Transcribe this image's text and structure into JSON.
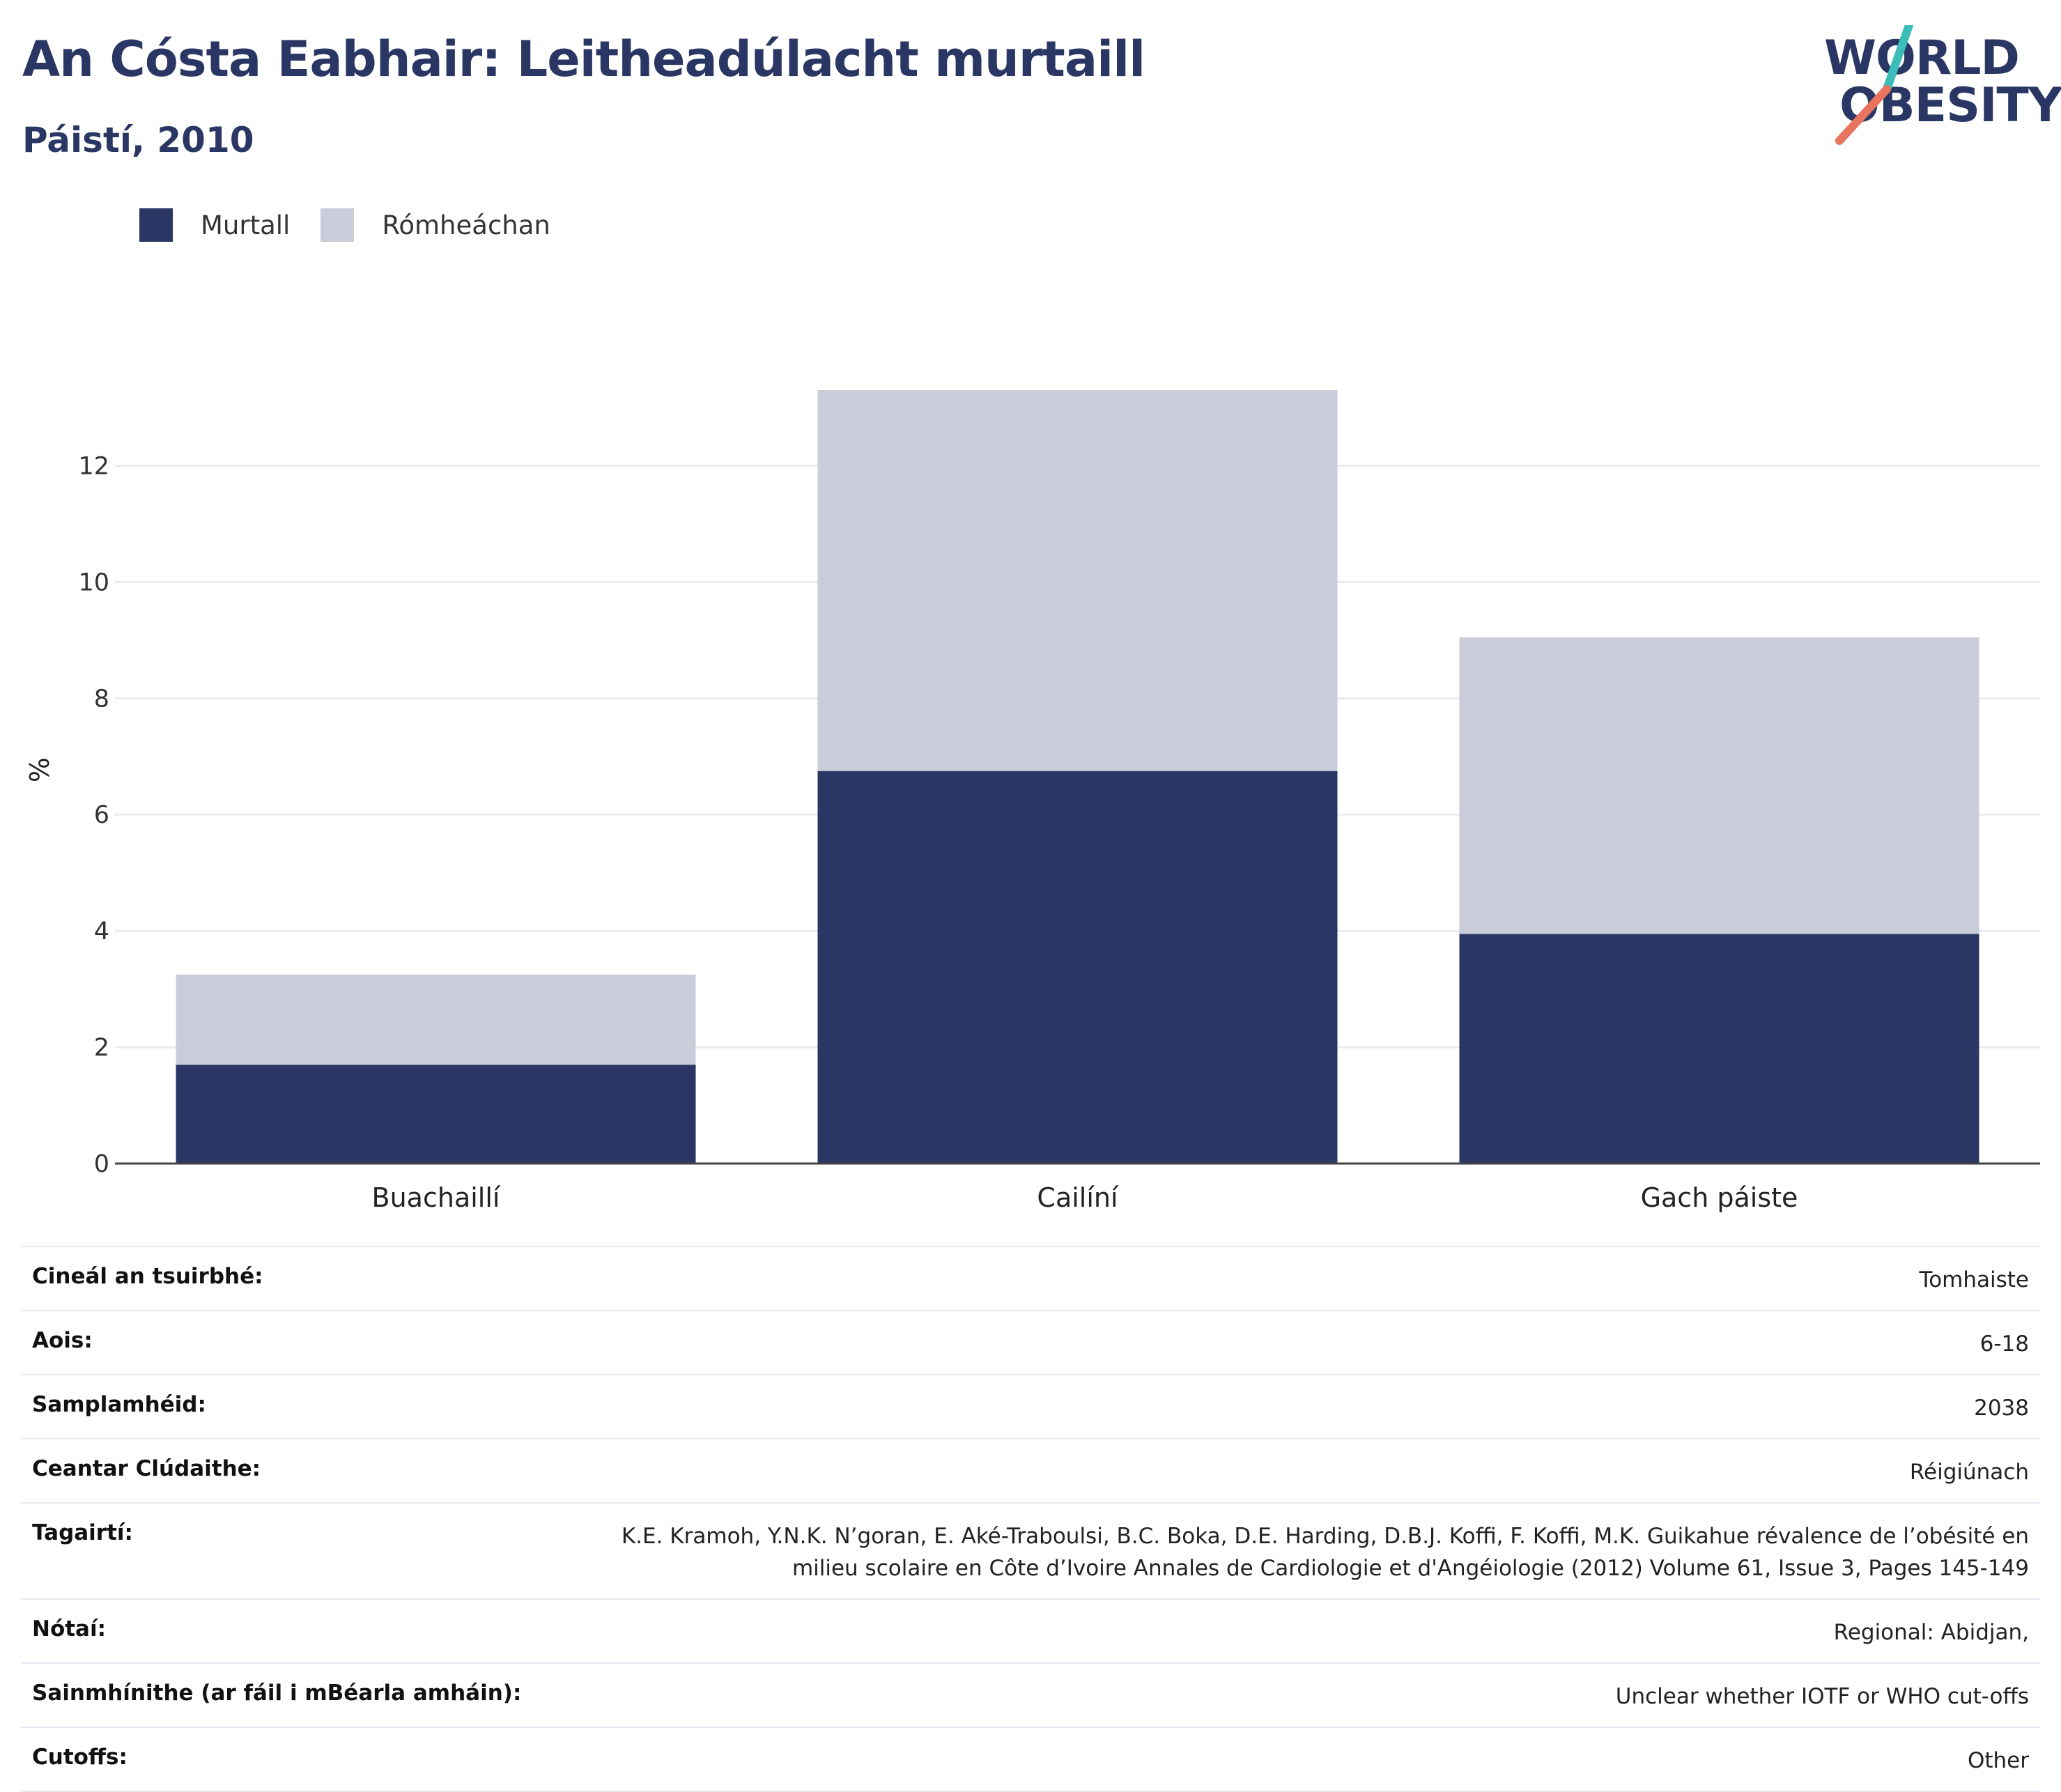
{
  "header": {
    "title": "An Cósta Eabhair: Leitheadúlacht murtaill",
    "subtitle": "Páistí, 2010",
    "logo_line1": "WORLD",
    "logo_line2": "OBESITY"
  },
  "colors": {
    "obese": "#2a3663",
    "overweight": "#cacdd9",
    "title": "#2a3663",
    "logo_teal": "#3dbdb9",
    "logo_coral": "#e8735f",
    "grid": "#e9ebf0",
    "axis": "#444444"
  },
  "chart_data": {
    "type": "bar",
    "stacked": true,
    "categories": [
      "Buachaillí",
      "Cailíní",
      "Gach páiste"
    ],
    "series": [
      {
        "name": "Murtall",
        "values": [
          1.7,
          6.75,
          3.95
        ]
      },
      {
        "name": "Rómheáchan",
        "values": [
          1.55,
          6.55,
          5.1
        ]
      }
    ],
    "ylabel": "%",
    "ylim": [
      0,
      13.3
    ],
    "yticks": [
      0,
      2,
      4,
      6,
      8,
      10,
      12
    ],
    "grid": true,
    "legend_position": "top-left"
  },
  "info_table": [
    {
      "key": "Cineál an tsuirbhé:",
      "value": "Tomhaiste"
    },
    {
      "key": "Aois:",
      "value": "6-18"
    },
    {
      "key": "Samplamhéid:",
      "value": "2038"
    },
    {
      "key": "Ceantar Clúdaithe:",
      "value": "Réigiúnach"
    },
    {
      "key": "Tagairtí:",
      "value": "K.E. Kramoh, Y.N.K. N’goran, E. Aké-Traboulsi, B.C. Boka, D.E. Harding, D.B.J. Koffi, F. Koffi, M.K. Guikahue révalence de l’obésité en milieu scolaire en Côte d’Ivoire Annales de Cardiologie et d'Angéiologie (2012) Volume 61, Issue 3, Pages 145-149"
    },
    {
      "key": "Nótaí:",
      "value": "Regional: Abidjan,"
    },
    {
      "key": "Sainmhínithe (ar fáil i mBéarla amháin):",
      "value": "Unclear whether IOTF or WHO cut-offs"
    },
    {
      "key": "Cutoffs:",
      "value": "Other"
    }
  ]
}
